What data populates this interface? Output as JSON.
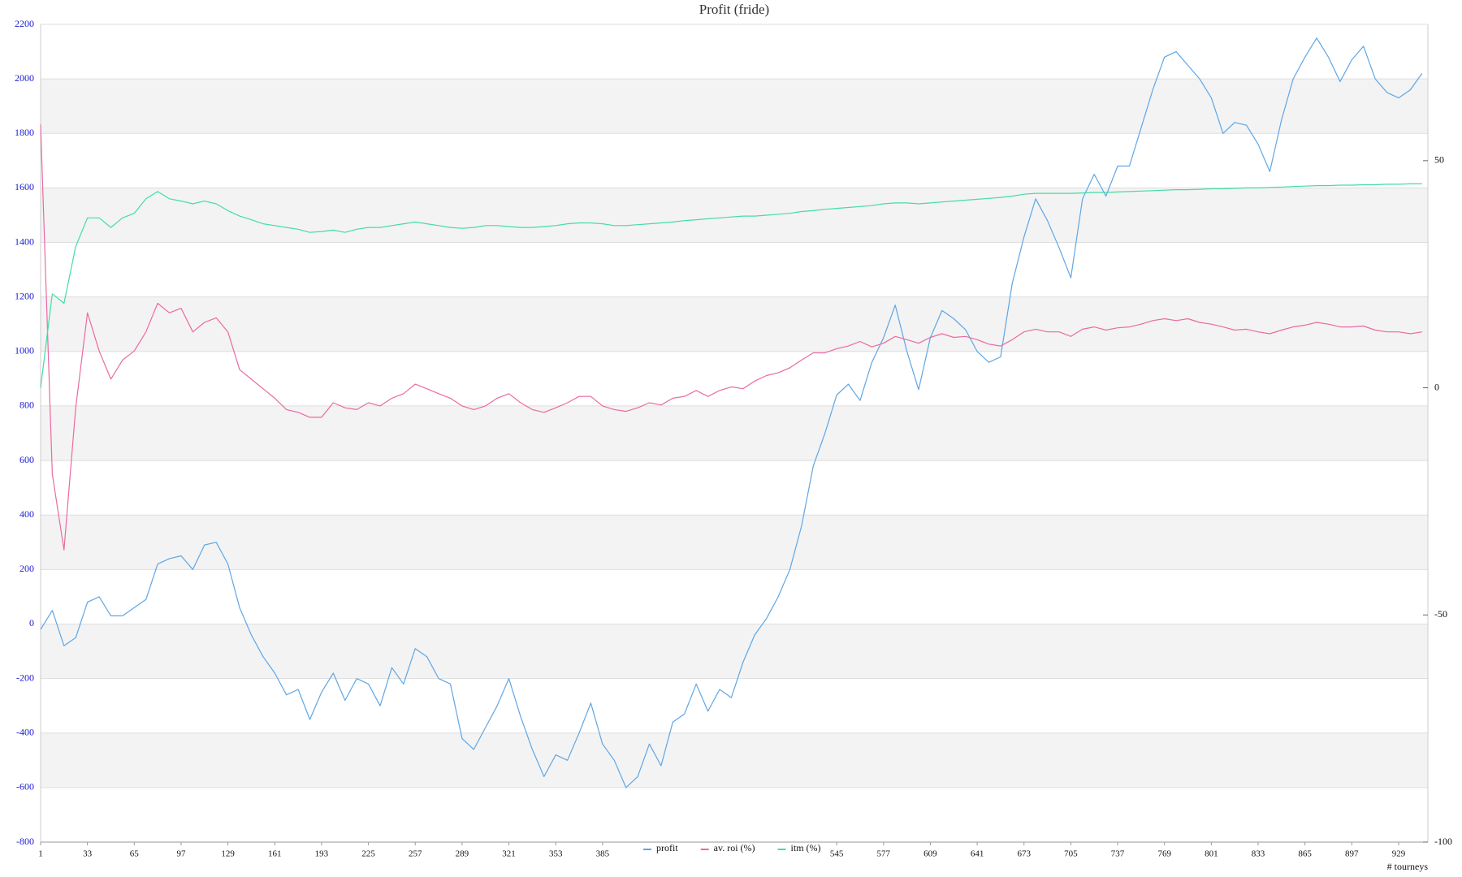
{
  "chart_data": {
    "type": "line",
    "title": "Profit  (fride)",
    "x_label": "# tourneys",
    "x": [
      1,
      9,
      17,
      25,
      33,
      41,
      49,
      57,
      65,
      73,
      81,
      89,
      97,
      105,
      113,
      121,
      129,
      137,
      145,
      153,
      161,
      169,
      177,
      185,
      193,
      201,
      209,
      217,
      225,
      233,
      241,
      249,
      257,
      265,
      273,
      281,
      289,
      297,
      305,
      313,
      321,
      329,
      337,
      345,
      353,
      361,
      369,
      377,
      385,
      393,
      401,
      409,
      417,
      425,
      433,
      441,
      449,
      457,
      465,
      473,
      481,
      489,
      497,
      505,
      513,
      521,
      529,
      537,
      545,
      553,
      561,
      569,
      577,
      585,
      593,
      601,
      609,
      617,
      625,
      633,
      641,
      649,
      657,
      665,
      673,
      681,
      689,
      697,
      705,
      713,
      721,
      729,
      737,
      745,
      753,
      761,
      769,
      777,
      785,
      793,
      801,
      809,
      817,
      825,
      833,
      841,
      849,
      857,
      865,
      873,
      881,
      889,
      897,
      905,
      913,
      921,
      929,
      937,
      945
    ],
    "series": [
      {
        "name": "profit",
        "color": "#5ea6e6",
        "values": [
          -20,
          50,
          -80,
          -50,
          80,
          100,
          30,
          30,
          60,
          90,
          220,
          240,
          250,
          200,
          290,
          300,
          220,
          60,
          -40,
          -120,
          -180,
          -260,
          -240,
          -350,
          -250,
          -180,
          -280,
          -200,
          -220,
          -300,
          -160,
          -220,
          -90,
          -120,
          -200,
          -220,
          -420,
          -460,
          -380,
          -300,
          -200,
          -340,
          -460,
          -560,
          -480,
          -500,
          -400,
          -290,
          -440,
          -500,
          -600,
          -560,
          -440,
          -520,
          -360,
          -330,
          -220,
          -320,
          -240,
          -270,
          -140,
          -40,
          20,
          100,
          200,
          360,
          580,
          700,
          840,
          880,
          820,
          960,
          1050,
          1170,
          1000,
          860,
          1050,
          1150,
          1120,
          1080,
          1000,
          960,
          980,
          1250,
          1420,
          1560,
          1480,
          1380,
          1270,
          1560,
          1650,
          1570,
          1680,
          1680,
          1820,
          1960,
          2080,
          2100,
          2050,
          2000,
          1930,
          1800,
          1840,
          1830,
          1760,
          1660,
          1850,
          2000,
          2080,
          2150,
          2080,
          1990,
          2070,
          2120,
          2000,
          1950,
          1930,
          1960,
          2020
        ]
      },
      {
        "name": "av. roi (%)",
        "color": "#ea6aa2",
        "axis": "y2",
        "values": [
          58,
          -19,
          -35.7,
          -4.4,
          16.5,
          8.1,
          1.9,
          6.1,
          8.1,
          12.3,
          18.6,
          16.5,
          17.5,
          12.3,
          14.4,
          15.4,
          12.3,
          4.0,
          1.9,
          -0.2,
          -2.3,
          -4.8,
          -5.4,
          -6.5,
          -6.5,
          -3.3,
          -4.4,
          -4.8,
          -3.3,
          -4.0,
          -2.3,
          -1.3,
          0.8,
          -0.2,
          -1.3,
          -2.3,
          -4.0,
          -4.8,
          -4.0,
          -2.3,
          -1.3,
          -3.3,
          -4.8,
          -5.4,
          -4.4,
          -3.3,
          -1.9,
          -1.9,
          -4.0,
          -4.8,
          -5.2,
          -4.4,
          -3.3,
          -3.8,
          -2.3,
          -1.9,
          -0.6,
          -1.9,
          -0.6,
          0.2,
          -0.2,
          1.5,
          2.7,
          3.3,
          4.4,
          6.1,
          7.7,
          7.7,
          8.6,
          9.2,
          10.2,
          9.0,
          9.8,
          11.3,
          10.6,
          9.8,
          11.1,
          11.9,
          11.1,
          11.3,
          10.6,
          9.6,
          9.2,
          10.6,
          12.3,
          12.9,
          12.3,
          12.3,
          11.3,
          12.9,
          13.4,
          12.7,
          13.2,
          13.4,
          14.0,
          14.8,
          15.2,
          14.8,
          15.2,
          14.4,
          14.0,
          13.4,
          12.7,
          12.9,
          12.3,
          11.9,
          12.7,
          13.4,
          13.8,
          14.4,
          14.0,
          13.4,
          13.4,
          13.6,
          12.7,
          12.3,
          12.3,
          11.9,
          12.3
        ]
      },
      {
        "name": "itm (%)",
        "color": "#44dca6",
        "axis": "y2",
        "values": [
          0,
          20.7,
          18.6,
          31.1,
          37.4,
          37.4,
          35.3,
          37.4,
          38.4,
          41.6,
          43.2,
          41.6,
          41.1,
          40.5,
          41.1,
          40.5,
          39.0,
          37.8,
          37.0,
          36.1,
          35.7,
          35.3,
          34.9,
          34.2,
          34.4,
          34.7,
          34.2,
          34.9,
          35.3,
          35.3,
          35.7,
          36.1,
          36.5,
          36.1,
          35.7,
          35.3,
          35.1,
          35.3,
          35.7,
          35.7,
          35.5,
          35.3,
          35.3,
          35.5,
          35.7,
          36.1,
          36.3,
          36.3,
          36.1,
          35.7,
          35.7,
          35.9,
          36.1,
          36.3,
          36.5,
          36.8,
          37.0,
          37.2,
          37.4,
          37.6,
          37.8,
          37.8,
          38.0,
          38.2,
          38.4,
          38.8,
          39.0,
          39.3,
          39.5,
          39.7,
          39.9,
          40.1,
          40.5,
          40.7,
          40.7,
          40.5,
          40.7,
          40.9,
          41.1,
          41.3,
          41.5,
          41.7,
          41.9,
          42.2,
          42.6,
          42.8,
          42.8,
          42.8,
          42.8,
          42.9,
          43.0,
          43.0,
          43.1,
          43.2,
          43.3,
          43.4,
          43.5,
          43.6,
          43.6,
          43.7,
          43.8,
          43.8,
          43.9,
          44.0,
          44.0,
          44.1,
          44.2,
          44.3,
          44.4,
          44.5,
          44.5,
          44.6,
          44.6,
          44.7,
          44.7,
          44.8,
          44.8,
          44.9,
          44.9
        ]
      }
    ],
    "xlim": [
      1,
      949
    ],
    "xticks": [
      1,
      33,
      65,
      97,
      129,
      161,
      193,
      225,
      257,
      289,
      321,
      353,
      385,
      545,
      577,
      609,
      641,
      673,
      705,
      737,
      769,
      801,
      833,
      865,
      897,
      929
    ],
    "ylim": [
      -800,
      2200
    ],
    "yticks": [
      -800,
      -600,
      -400,
      -200,
      0,
      200,
      400,
      600,
      800,
      1000,
      1200,
      1400,
      1600,
      1800,
      2000,
      2200
    ],
    "y2lim": [
      -100,
      80
    ],
    "y2ticks": [
      -100,
      -50,
      0,
      50
    ],
    "grid": "bands",
    "band_color": "#f3f3f3",
    "legend": "bottom"
  }
}
